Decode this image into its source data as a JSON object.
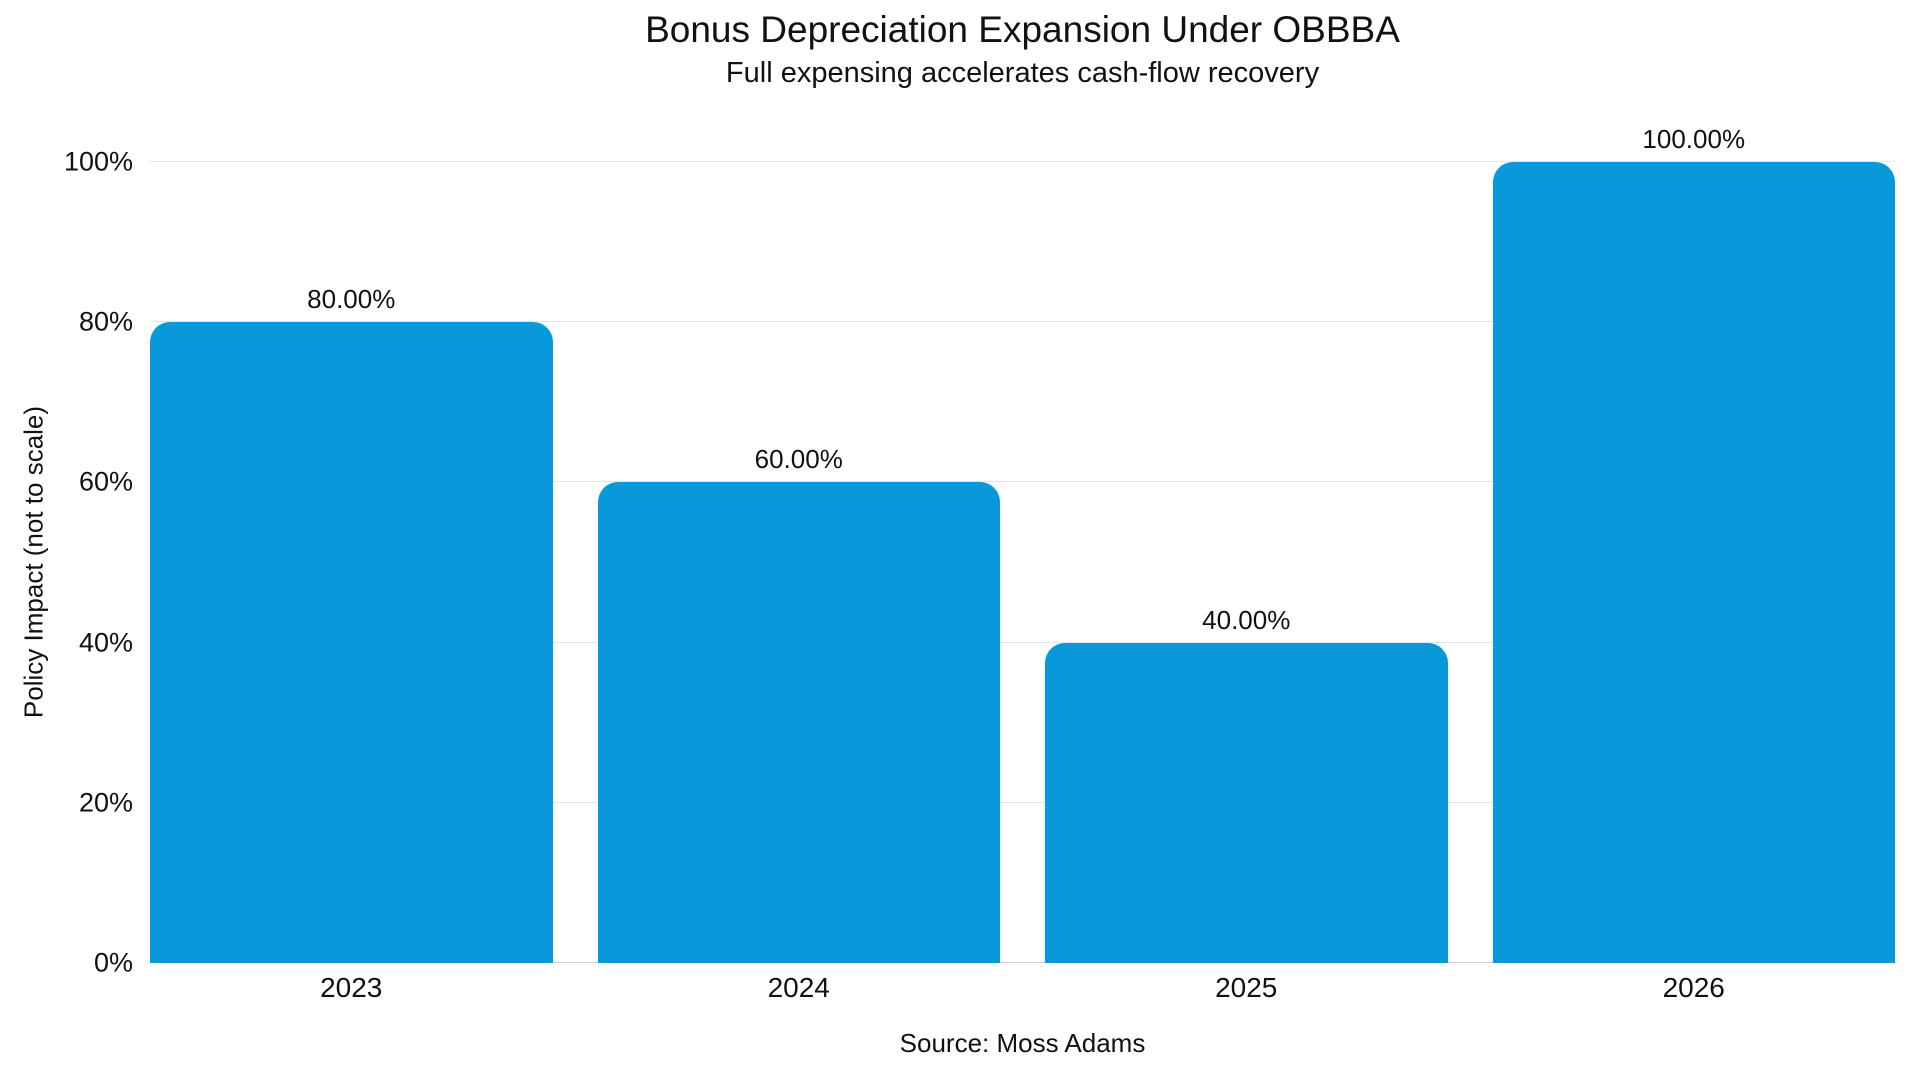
{
  "chart_data": {
    "type": "bar",
    "title": "Bonus Depreciation Expansion Under OBBBA",
    "subtitle": "Full expensing accelerates cash-flow recovery",
    "categories": [
      "2023",
      "2024",
      "2025",
      "2026"
    ],
    "values": [
      80,
      60,
      40,
      100
    ],
    "value_labels": [
      "80.00%",
      "60.00%",
      "40.00%",
      "100.00%"
    ],
    "xlabel": "",
    "ylabel": "Policy Impact (not to scale)",
    "ylim": [
      0,
      100
    ],
    "yticks": [
      {
        "value": 0,
        "label": "0%"
      },
      {
        "value": 20,
        "label": "20%"
      },
      {
        "value": 40,
        "label": "40%"
      },
      {
        "value": 60,
        "label": "60%"
      },
      {
        "value": 80,
        "label": "80%"
      },
      {
        "value": 100,
        "label": "100%"
      },
      {
        "value": 0,
        "label": ""
      }
    ],
    "grid": "horizontal",
    "legend": "none",
    "source": "Source: Moss Adams",
    "colors": {
      "bar": "#0999db",
      "gridline": "#e4e4e4",
      "zero_line": "#d2d2d2",
      "text": "#111111",
      "background": "#ffffff"
    }
  }
}
